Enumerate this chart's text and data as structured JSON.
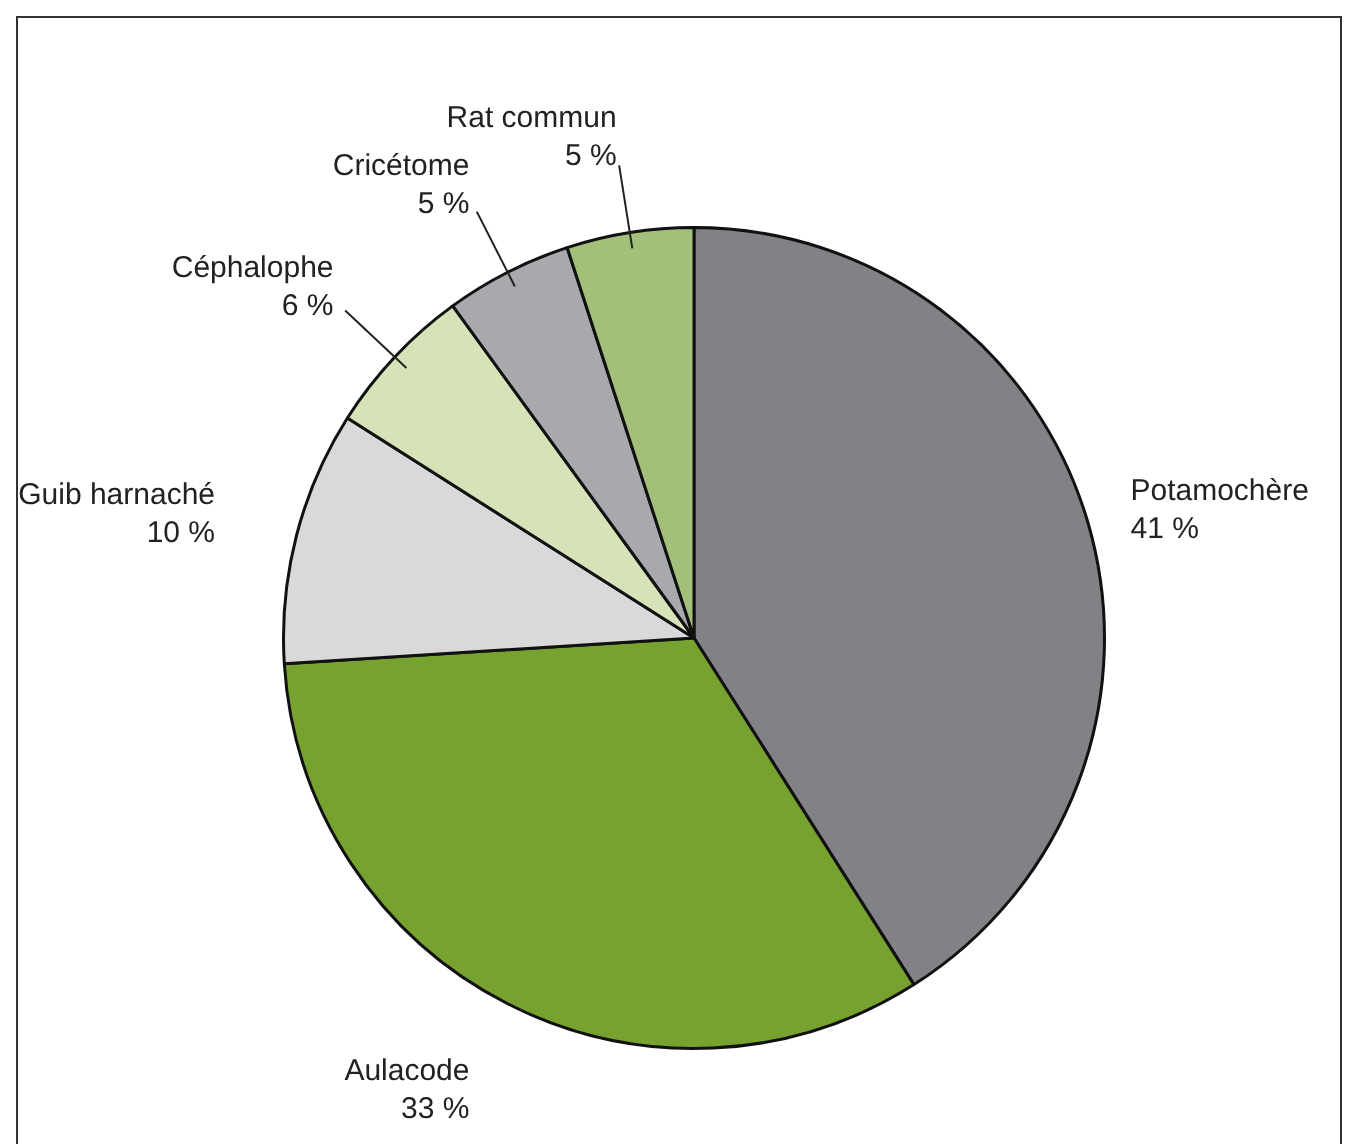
{
  "chart_data": {
    "type": "pie",
    "categories": [
      "Potamochère",
      "Aulacode",
      "Guib harnaché",
      "Céphalophe",
      "Cricétome",
      "Rat commun"
    ],
    "values": [
      41,
      33,
      10,
      6,
      5,
      5
    ],
    "colors": [
      "#808285",
      "#78a22f",
      "#d9d9d9",
      "#d6e2b8",
      "#a7a9ac",
      "#a3c07a"
    ],
    "value_labels": [
      "41 %",
      "33 %",
      "10 %",
      "6 %",
      "5 %",
      "5 %"
    ],
    "legend": false
  }
}
